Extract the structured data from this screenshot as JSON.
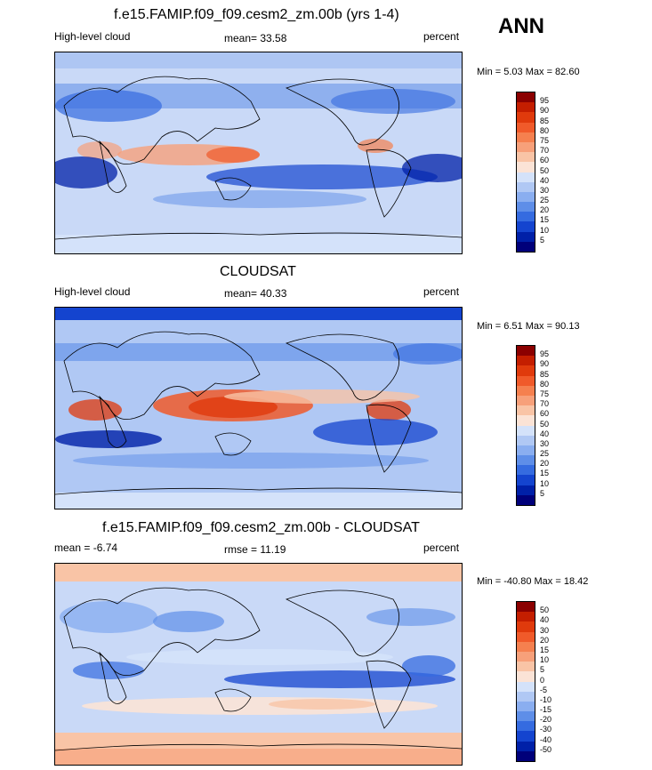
{
  "season": "ANN",
  "panels": [
    {
      "title": "f.e15.FAMIP.f09_f09.cesm2_zm.00b (yrs 1-4)",
      "left_label": "High-level cloud",
      "mean_text": "mean=  33.58",
      "right_label": "percent",
      "minmax": "Min =   5.03 Max =  82.60"
    },
    {
      "title": "CLOUDSAT",
      "left_label": "High-level cloud",
      "mean_text": "mean=  40.33",
      "right_label": "percent",
      "minmax": "Min =   6.51 Max =  90.13"
    },
    {
      "title": "f.e15.FAMIP.f09_f09.cesm2_zm.00b - CLOUDSAT",
      "left_label": "mean =  -6.74",
      "mean_text": "rmse =  11.19",
      "right_label": "percent",
      "minmax": "Min = -40.80 Max =  18.42"
    }
  ],
  "colorbar1": {
    "labels": [
      "95",
      "90",
      "85",
      "80",
      "75",
      "70",
      "60",
      "50",
      "40",
      "30",
      "25",
      "20",
      "15",
      "10",
      "5"
    ],
    "colors": [
      "#8b0000",
      "#c41e00",
      "#e03a0c",
      "#f05a2a",
      "#f5804f",
      "#f7a07a",
      "#f9c4a6",
      "#fbe3d6",
      "#d4e2fa",
      "#b0c8f4",
      "#8aaef0",
      "#5e8ee8",
      "#356be0",
      "#1444cf",
      "#0020a8",
      "#00007a"
    ]
  },
  "colorbar2": {
    "labels": [
      "50",
      "40",
      "30",
      "20",
      "15",
      "10",
      "5",
      "0",
      "-5",
      "-10",
      "-15",
      "-20",
      "-30",
      "-40",
      "-50"
    ],
    "colors": [
      "#8b0000",
      "#c41e00",
      "#e03a0c",
      "#f05a2a",
      "#f5804f",
      "#f7a07a",
      "#f9c4a6",
      "#fbe3d6",
      "#d4e2fa",
      "#b0c8f4",
      "#8aaef0",
      "#5e8ee8",
      "#356be0",
      "#1444cf",
      "#0020a8",
      "#00007a"
    ]
  },
  "chart_data": [
    {
      "type": "heatmap",
      "title": "f.e15.FAMIP.f09_f09.cesm2_zm.00b (yrs 1-4)",
      "variable": "High-level cloud",
      "units": "percent",
      "mean": 33.58,
      "min": 5.03,
      "max": 82.6,
      "levels": [
        5,
        10,
        15,
        20,
        25,
        30,
        40,
        50,
        60,
        70,
        75,
        80,
        85,
        90,
        95
      ]
    },
    {
      "type": "heatmap",
      "title": "CLOUDSAT",
      "variable": "High-level cloud",
      "units": "percent",
      "mean": 40.33,
      "min": 6.51,
      "max": 90.13,
      "levels": [
        5,
        10,
        15,
        20,
        25,
        30,
        40,
        50,
        60,
        70,
        75,
        80,
        85,
        90,
        95
      ]
    },
    {
      "type": "heatmap",
      "title": "f.e15.FAMIP.f09_f09.cesm2_zm.00b - CLOUDSAT",
      "units": "percent",
      "mean": -6.74,
      "rmse": 11.19,
      "min": -40.8,
      "max": 18.42,
      "levels": [
        -50,
        -40,
        -30,
        -20,
        -15,
        -10,
        -5,
        0,
        5,
        10,
        15,
        20,
        30,
        40,
        50
      ]
    }
  ]
}
